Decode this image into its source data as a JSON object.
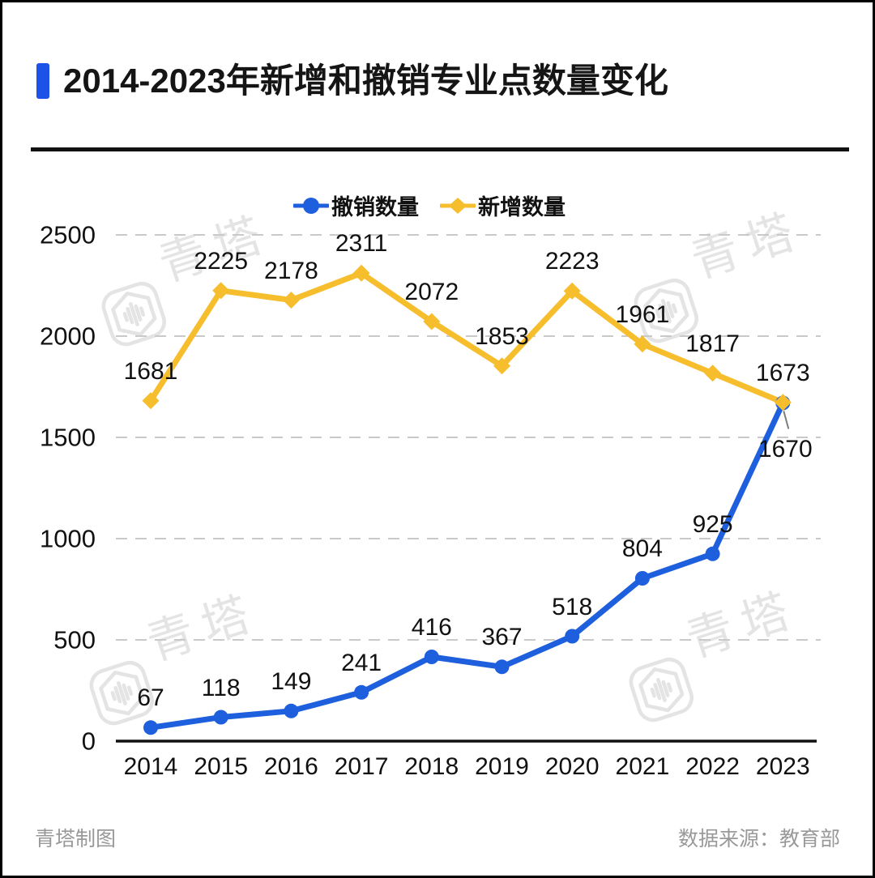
{
  "header": {
    "title": "2014-2023年新增和撤销专业点数量变化"
  },
  "legend": {
    "items": [
      {
        "id": "revoked",
        "label": "撤销数量",
        "marker": "circle",
        "color": "#1e5fdd"
      },
      {
        "id": "added",
        "label": "新增数量",
        "marker": "diamond",
        "color": "#f6be2d"
      }
    ]
  },
  "chart_data": {
    "type": "line",
    "title": "2014-2023年新增和撤销专业点数量变化",
    "categories": [
      "2014",
      "2015",
      "2016",
      "2017",
      "2018",
      "2019",
      "2020",
      "2021",
      "2022",
      "2023"
    ],
    "series": [
      {
        "id": "revoked",
        "name": "撤销数量",
        "color": "#1e5fdd",
        "marker": "circle",
        "values": [
          67,
          118,
          149,
          241,
          416,
          367,
          518,
          804,
          925,
          1670
        ]
      },
      {
        "id": "added",
        "name": "新增数量",
        "color": "#f6be2d",
        "marker": "diamond",
        "values": [
          1681,
          2225,
          2178,
          2311,
          2072,
          1853,
          2223,
          1961,
          1817,
          1673
        ]
      }
    ],
    "xlabel": "",
    "ylabel": "",
    "yticks": [
      0,
      500,
      1000,
      1500,
      2000,
      2500
    ],
    "ylim": [
      0,
      2600
    ],
    "grid": "horizontal-dashed",
    "legend_position": "top",
    "annotations": "last blue point (1670) labeled below point with thin leader line; lines converge at 2023"
  },
  "watermark": {
    "text": "青塔"
  },
  "footer": {
    "credit": "青塔制图",
    "source": "数据来源：教育部"
  },
  "colors": {
    "title_bar": "#1c52e8",
    "revoked": "#1e5fdd",
    "added": "#f6be2d",
    "grid": "#c9c9c9",
    "axis": "#111111",
    "footer_text": "#999999",
    "watermark": "#e4e4e4",
    "leader": "#7d7d7d"
  }
}
